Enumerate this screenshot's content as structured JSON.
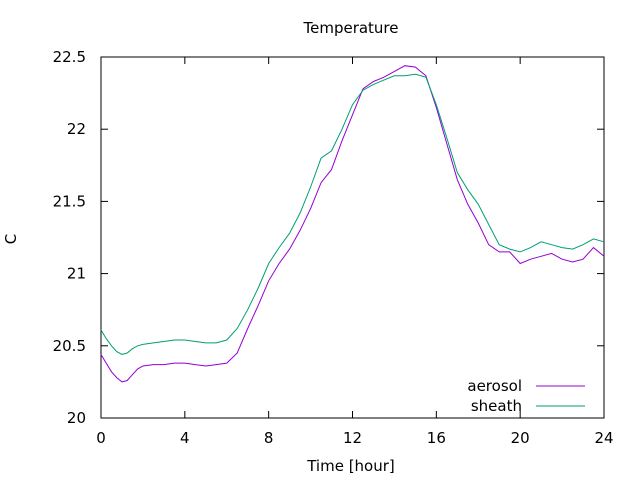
{
  "chart_data": {
    "type": "line",
    "title": "Temperature",
    "xlabel": "Time [hour]",
    "ylabel": "C",
    "xlim": [
      0,
      24
    ],
    "ylim": [
      20,
      22.5
    ],
    "xticks": [
      0,
      4,
      8,
      12,
      16,
      20,
      24
    ],
    "xtick_labels": [
      "0",
      "4",
      "8",
      "12",
      "16",
      "20",
      "24"
    ],
    "yticks": [
      20,
      20.5,
      21,
      21.5,
      22,
      22.5
    ],
    "ytick_labels": [
      "20",
      "20.5",
      "21",
      "21.5",
      "22",
      "22.5"
    ],
    "grid": false,
    "legend_position": "bottom-right",
    "series": [
      {
        "name": "aerosol",
        "color": "#9400d3",
        "x": [
          0,
          0.25,
          0.5,
          0.75,
          1,
          1.25,
          1.5,
          1.75,
          2,
          2.5,
          3,
          3.5,
          4,
          4.5,
          5,
          5.5,
          6,
          6.5,
          7,
          7.5,
          8,
          8.5,
          9,
          9.5,
          10,
          10.5,
          11,
          11.5,
          12,
          12.5,
          13,
          13.5,
          14,
          14.5,
          15,
          15.5,
          16,
          16.5,
          17,
          17.5,
          18,
          18.5,
          19,
          19.5,
          20,
          20.5,
          21,
          21.5,
          22,
          22.5,
          23,
          23.5,
          24
        ],
        "y": [
          20.44,
          20.38,
          20.32,
          20.28,
          20.25,
          20.26,
          20.3,
          20.34,
          20.36,
          20.37,
          20.37,
          20.38,
          20.38,
          20.37,
          20.36,
          20.37,
          20.38,
          20.45,
          20.62,
          20.78,
          20.95,
          21.07,
          21.17,
          21.3,
          21.45,
          21.63,
          21.72,
          21.92,
          22.1,
          22.28,
          22.33,
          22.36,
          22.4,
          22.44,
          22.43,
          22.37,
          22.15,
          21.9,
          21.65,
          21.48,
          21.35,
          21.2,
          21.15,
          21.15,
          21.07,
          21.1,
          21.12,
          21.14,
          21.1,
          21.08,
          21.1,
          21.18,
          21.12
        ]
      },
      {
        "name": "sheath",
        "color": "#009e73",
        "x": [
          0,
          0.25,
          0.5,
          0.75,
          1,
          1.25,
          1.5,
          1.75,
          2,
          2.5,
          3,
          3.5,
          4,
          4.5,
          5,
          5.5,
          6,
          6.5,
          7,
          7.5,
          8,
          8.5,
          9,
          9.5,
          10,
          10.5,
          11,
          11.5,
          12,
          12.5,
          13,
          13.5,
          14,
          14.5,
          15,
          15.5,
          16,
          16.5,
          17,
          17.5,
          18,
          18.5,
          19,
          19.5,
          20,
          20.5,
          21,
          21.5,
          22,
          22.5,
          23,
          23.5,
          24
        ],
        "y": [
          20.61,
          20.55,
          20.5,
          20.46,
          20.44,
          20.45,
          20.48,
          20.5,
          20.51,
          20.52,
          20.53,
          20.54,
          20.54,
          20.53,
          20.52,
          20.52,
          20.54,
          20.62,
          20.75,
          20.9,
          21.07,
          21.18,
          21.28,
          21.42,
          21.6,
          21.8,
          21.85,
          22.0,
          22.17,
          22.27,
          22.31,
          22.34,
          22.37,
          22.37,
          22.38,
          22.36,
          22.17,
          21.94,
          21.7,
          21.58,
          21.48,
          21.34,
          21.2,
          21.17,
          21.15,
          21.18,
          21.22,
          21.2,
          21.18,
          21.17,
          21.2,
          21.24,
          21.22
        ]
      }
    ]
  }
}
